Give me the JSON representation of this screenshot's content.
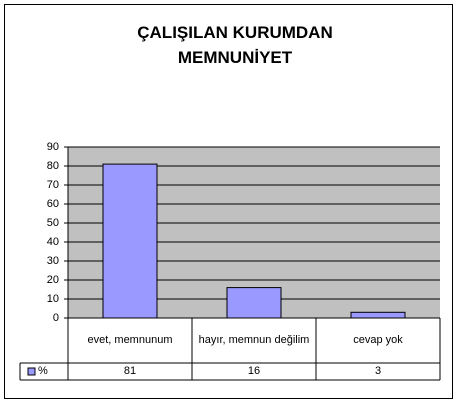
{
  "chart_data": {
    "type": "bar",
    "title": "ÇALIŞILAN KURUMDAN MEMNUNİYET",
    "categories": [
      "evet, memnunum",
      "hayır, memnun değilim",
      "cevap yok"
    ],
    "series": [
      {
        "name": "%",
        "color": "#9999ff",
        "values": [
          81,
          16,
          3
        ]
      }
    ],
    "ylim": [
      0,
      90
    ],
    "yticks": [
      0,
      10,
      20,
      30,
      40,
      50,
      60,
      70,
      80,
      90
    ],
    "grid": true
  }
}
